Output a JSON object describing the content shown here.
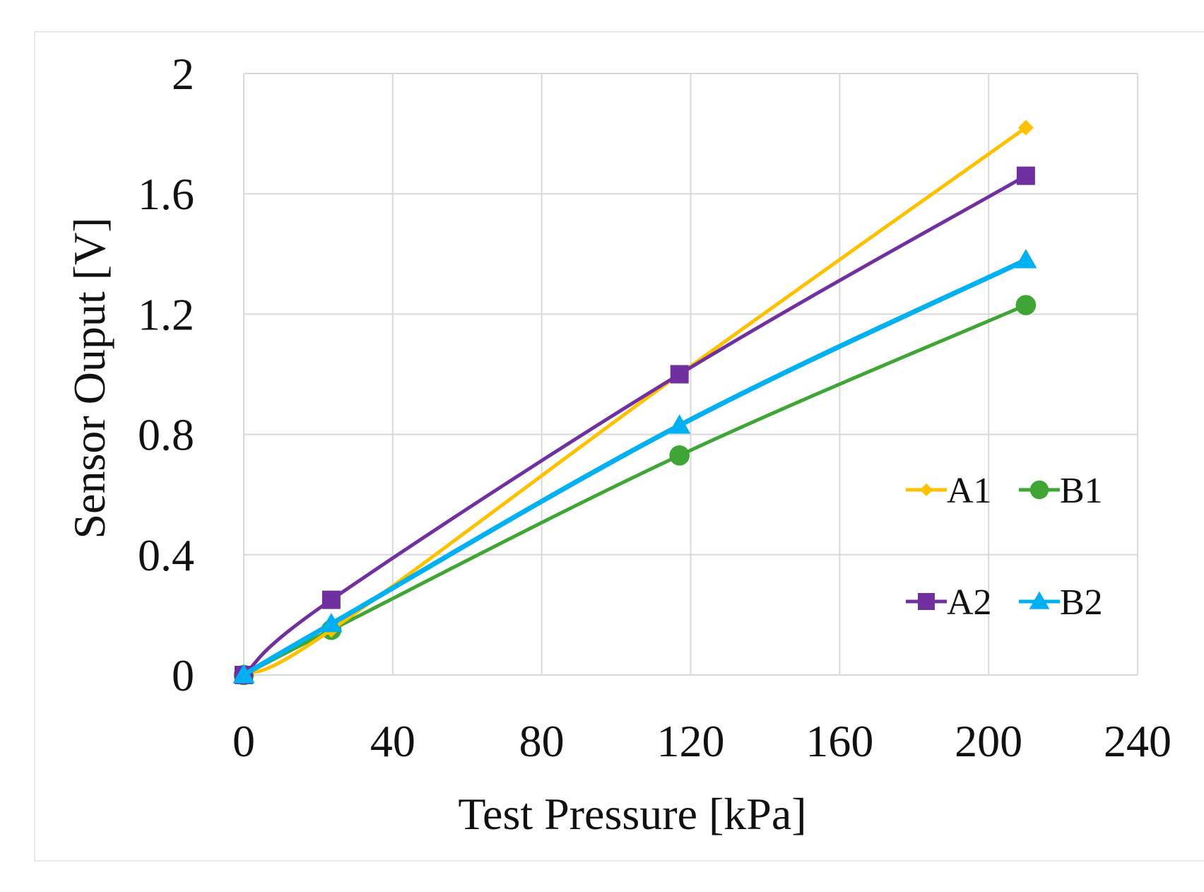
{
  "chart_data": {
    "type": "line",
    "xlabel": "Test Pressure [kPa]",
    "ylabel": "Sensor Ouput [V]",
    "xlim": [
      0,
      240
    ],
    "ylim": [
      0,
      2
    ],
    "x_ticks": [
      "0",
      "40",
      "80",
      "120",
      "160",
      "200",
      "240"
    ],
    "y_ticks": [
      "0",
      "0.4",
      "0.8",
      "1.2",
      "1.6",
      "2"
    ],
    "grid": true,
    "legend_position": "right",
    "x": [
      0,
      23.5,
      117,
      210
    ],
    "series": [
      {
        "name": "A1",
        "marker": "diamond",
        "color": "#FFC000",
        "values": [
          0,
          0.15,
          1.0,
          1.82
        ]
      },
      {
        "name": "B1",
        "marker": "circle",
        "color": "#3FA535",
        "values": [
          0,
          0.15,
          0.73,
          1.23
        ]
      },
      {
        "name": "A2",
        "marker": "square",
        "color": "#7030A0",
        "values": [
          0,
          0.25,
          1.0,
          1.66
        ]
      },
      {
        "name": "B2",
        "marker": "triangle",
        "color": "#00B0F0",
        "values": [
          0,
          0.17,
          0.83,
          1.38
        ]
      }
    ]
  }
}
